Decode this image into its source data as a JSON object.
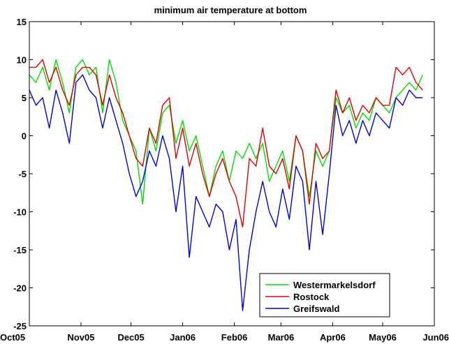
{
  "chart_data": {
    "type": "line",
    "title": "minimum air temperature at bottom",
    "xlabel": "",
    "ylabel": "",
    "ylim": [
      -25,
      15
    ],
    "x_ticks": [
      "Oct05",
      "Nov05",
      "Dec05",
      "Jan06",
      "Feb06",
      "Mar06",
      "Apr06",
      "May06",
      "Jun06"
    ],
    "y_ticks": [
      15,
      10,
      5,
      0,
      -5,
      -10,
      -15,
      -20,
      -25
    ],
    "grid": false,
    "legend_position": "bottom-right",
    "series": [
      {
        "name": "Westermarkelsdorf",
        "color": "#00dd00",
        "points": [
          [
            "2005-10-01",
            8
          ],
          [
            "2005-10-05",
            7
          ],
          [
            "2005-10-09",
            9
          ],
          [
            "2005-10-13",
            6
          ],
          [
            "2005-10-17",
            10
          ],
          [
            "2005-10-21",
            7
          ],
          [
            "2005-10-25",
            3
          ],
          [
            "2005-10-29",
            9
          ],
          [
            "2005-11-02",
            10
          ],
          [
            "2005-11-06",
            8
          ],
          [
            "2005-11-10",
            9
          ],
          [
            "2005-11-14",
            3
          ],
          [
            "2005-11-18",
            10
          ],
          [
            "2005-11-22",
            7
          ],
          [
            "2005-11-26",
            2
          ],
          [
            "2005-11-30",
            0
          ],
          [
            "2005-12-04",
            -2
          ],
          [
            "2005-12-08",
            -9
          ],
          [
            "2005-12-12",
            1
          ],
          [
            "2005-12-16",
            -2
          ],
          [
            "2005-12-20",
            3
          ],
          [
            "2005-12-24",
            4
          ],
          [
            "2005-12-28",
            -1
          ],
          [
            "2006-01-01",
            2
          ],
          [
            "2006-01-05",
            -2
          ],
          [
            "2006-01-09",
            0
          ],
          [
            "2006-01-13",
            -4
          ],
          [
            "2006-01-17",
            -8
          ],
          [
            "2006-01-21",
            -4
          ],
          [
            "2006-01-25",
            -2
          ],
          [
            "2006-01-29",
            -6
          ],
          [
            "2006-02-02",
            -2
          ],
          [
            "2006-02-06",
            -3
          ],
          [
            "2006-02-10",
            -1
          ],
          [
            "2006-02-14",
            -3
          ],
          [
            "2006-02-18",
            -1
          ],
          [
            "2006-02-22",
            -6
          ],
          [
            "2006-02-26",
            -4
          ],
          [
            "2006-03-02",
            -2
          ],
          [
            "2006-03-06",
            -6
          ],
          [
            "2006-03-10",
            0
          ],
          [
            "2006-03-14",
            -2
          ],
          [
            "2006-03-18",
            -8
          ],
          [
            "2006-03-22",
            -2
          ],
          [
            "2006-03-26",
            -4
          ],
          [
            "2006-03-30",
            -2
          ],
          [
            "2006-04-03",
            5
          ],
          [
            "2006-04-07",
            3
          ],
          [
            "2006-04-11",
            4
          ],
          [
            "2006-04-15",
            1
          ],
          [
            "2006-04-19",
            3
          ],
          [
            "2006-04-23",
            2
          ],
          [
            "2006-04-27",
            5
          ],
          [
            "2006-05-01",
            4
          ],
          [
            "2006-05-05",
            3
          ],
          [
            "2006-05-09",
            5
          ],
          [
            "2006-05-13",
            6
          ],
          [
            "2006-05-17",
            7
          ],
          [
            "2006-05-21",
            6
          ],
          [
            "2006-05-25",
            8
          ]
        ]
      },
      {
        "name": "Rostock",
        "color": "#e00000",
        "points": [
          [
            "2005-10-01",
            9
          ],
          [
            "2005-10-05",
            9
          ],
          [
            "2005-10-09",
            10
          ],
          [
            "2005-10-13",
            7
          ],
          [
            "2005-10-17",
            9
          ],
          [
            "2005-10-21",
            6
          ],
          [
            "2005-10-25",
            4
          ],
          [
            "2005-10-29",
            8
          ],
          [
            "2005-11-02",
            9
          ],
          [
            "2005-11-06",
            9
          ],
          [
            "2005-11-10",
            8
          ],
          [
            "2005-11-14",
            4
          ],
          [
            "2005-11-18",
            8
          ],
          [
            "2005-11-22",
            5
          ],
          [
            "2005-11-26",
            3
          ],
          [
            "2005-11-30",
            0
          ],
          [
            "2005-12-04",
            -3
          ],
          [
            "2005-12-08",
            -4
          ],
          [
            "2005-12-12",
            1
          ],
          [
            "2005-12-16",
            -1
          ],
          [
            "2005-12-20",
            4
          ],
          [
            "2005-12-24",
            5
          ],
          [
            "2005-12-28",
            -3
          ],
          [
            "2006-01-01",
            1
          ],
          [
            "2006-01-05",
            -4
          ],
          [
            "2006-01-09",
            -1
          ],
          [
            "2006-01-13",
            -5
          ],
          [
            "2006-01-17",
            -8
          ],
          [
            "2006-01-21",
            -5
          ],
          [
            "2006-01-25",
            -3
          ],
          [
            "2006-01-29",
            -6
          ],
          [
            "2006-02-02",
            -8
          ],
          [
            "2006-02-06",
            -12
          ],
          [
            "2006-02-10",
            -3
          ],
          [
            "2006-02-14",
            -4
          ],
          [
            "2006-02-18",
            1
          ],
          [
            "2006-02-22",
            -4
          ],
          [
            "2006-02-26",
            -5
          ],
          [
            "2006-03-02",
            -3
          ],
          [
            "2006-03-06",
            -7
          ],
          [
            "2006-03-10",
            0
          ],
          [
            "2006-03-14",
            -2
          ],
          [
            "2006-03-18",
            -9
          ],
          [
            "2006-03-22",
            -1
          ],
          [
            "2006-03-26",
            -3
          ],
          [
            "2006-03-30",
            -2
          ],
          [
            "2006-04-03",
            6
          ],
          [
            "2006-04-07",
            3
          ],
          [
            "2006-04-11",
            5
          ],
          [
            "2006-04-15",
            2
          ],
          [
            "2006-04-19",
            4
          ],
          [
            "2006-04-23",
            3
          ],
          [
            "2006-04-27",
            5
          ],
          [
            "2006-05-01",
            4
          ],
          [
            "2006-05-05",
            4
          ],
          [
            "2006-05-09",
            9
          ],
          [
            "2006-05-13",
            8
          ],
          [
            "2006-05-17",
            9
          ],
          [
            "2006-05-21",
            7
          ],
          [
            "2006-05-25",
            6
          ]
        ]
      },
      {
        "name": "Greifswald",
        "color": "#0000dd",
        "points": [
          [
            "2005-10-01",
            6
          ],
          [
            "2005-10-05",
            4
          ],
          [
            "2005-10-09",
            5
          ],
          [
            "2005-10-13",
            1
          ],
          [
            "2005-10-17",
            6
          ],
          [
            "2005-10-21",
            3
          ],
          [
            "2005-10-25",
            -1
          ],
          [
            "2005-10-29",
            7
          ],
          [
            "2005-11-02",
            8
          ],
          [
            "2005-11-06",
            6
          ],
          [
            "2005-11-10",
            5
          ],
          [
            "2005-11-14",
            1
          ],
          [
            "2005-11-18",
            5
          ],
          [
            "2005-11-22",
            2
          ],
          [
            "2005-11-26",
            -1
          ],
          [
            "2005-11-30",
            -5
          ],
          [
            "2005-12-04",
            -8
          ],
          [
            "2005-12-08",
            -6
          ],
          [
            "2005-12-12",
            -2
          ],
          [
            "2005-12-16",
            -4
          ],
          [
            "2005-12-20",
            0
          ],
          [
            "2005-12-24",
            -3
          ],
          [
            "2005-12-28",
            -10
          ],
          [
            "2006-01-01",
            -4
          ],
          [
            "2006-01-05",
            -16
          ],
          [
            "2006-01-09",
            -8
          ],
          [
            "2006-01-13",
            -10
          ],
          [
            "2006-01-17",
            -12
          ],
          [
            "2006-01-21",
            -9
          ],
          [
            "2006-01-25",
            -10
          ],
          [
            "2006-01-29",
            -15
          ],
          [
            "2006-02-02",
            -11
          ],
          [
            "2006-02-06",
            -23
          ],
          [
            "2006-02-10",
            -15
          ],
          [
            "2006-02-14",
            -10
          ],
          [
            "2006-02-18",
            -6
          ],
          [
            "2006-02-22",
            -10
          ],
          [
            "2006-02-26",
            -12
          ],
          [
            "2006-03-02",
            -7
          ],
          [
            "2006-03-06",
            -11
          ],
          [
            "2006-03-10",
            -4
          ],
          [
            "2006-03-14",
            -6
          ],
          [
            "2006-03-18",
            -15
          ],
          [
            "2006-03-22",
            -6
          ],
          [
            "2006-03-26",
            -13
          ],
          [
            "2006-03-30",
            -5
          ],
          [
            "2006-04-03",
            4
          ],
          [
            "2006-04-07",
            0
          ],
          [
            "2006-04-11",
            2
          ],
          [
            "2006-04-15",
            -1
          ],
          [
            "2006-04-19",
            2
          ],
          [
            "2006-04-23",
            0
          ],
          [
            "2006-04-27",
            3
          ],
          [
            "2006-05-01",
            2
          ],
          [
            "2006-05-05",
            1
          ],
          [
            "2006-05-09",
            5
          ],
          [
            "2006-05-13",
            4
          ],
          [
            "2006-05-17",
            6
          ],
          [
            "2006-05-21",
            5
          ],
          [
            "2006-05-25",
            5
          ]
        ]
      }
    ]
  }
}
